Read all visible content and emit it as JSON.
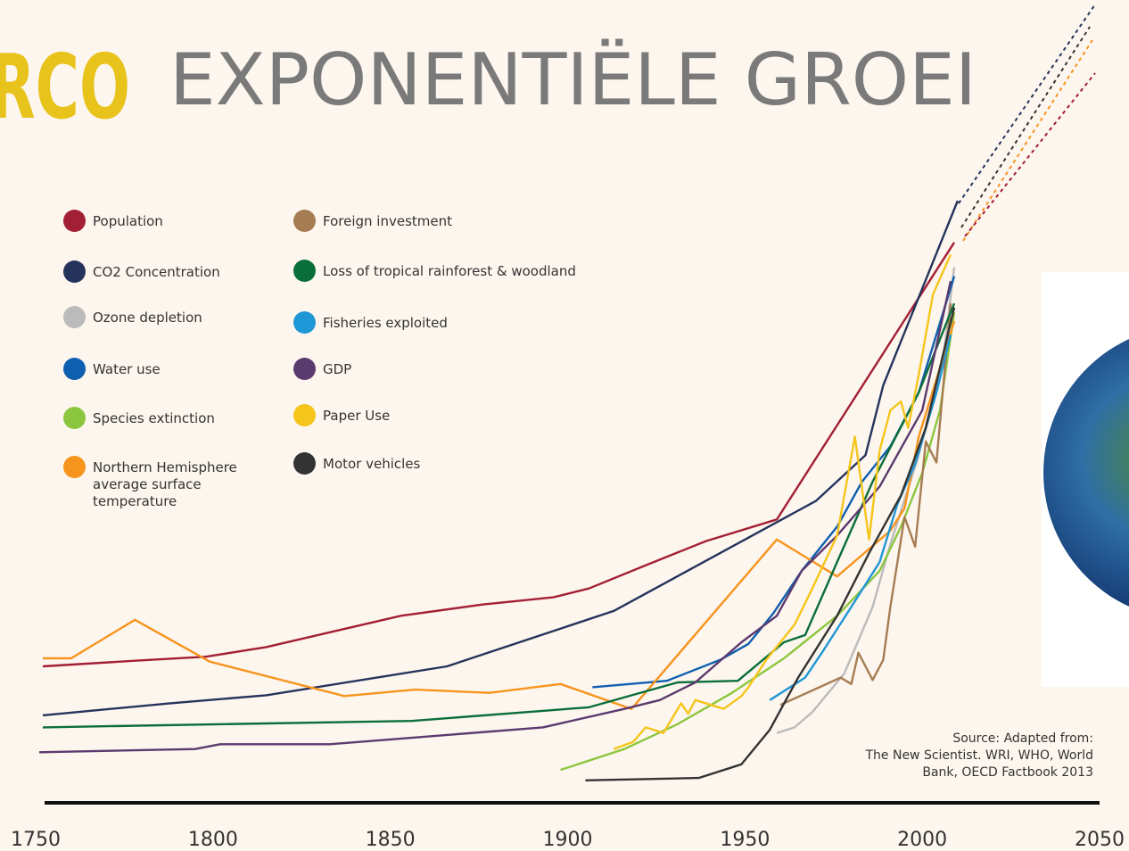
{
  "header": {
    "brand": "RCO",
    "title": "EXPONENTIËLE GROEI"
  },
  "chart_data": {
    "type": "line",
    "xlim": [
      1750,
      2050
    ],
    "xticks": [
      1750,
      1800,
      1850,
      1900,
      1950,
      2000,
      2050
    ],
    "ylim": [
      0,
      100
    ],
    "series": [
      {
        "name": "Population",
        "color": "#a31f34",
        "x": [
          1752,
          1778,
          1798,
          1815,
          1853,
          1876,
          1896,
          1906,
          1921,
          1939,
          1959,
          2009
        ],
        "values": [
          17,
          17.7,
          18.2,
          19.4,
          23.3,
          24.7,
          25.6,
          26.7,
          29.4,
          32.6,
          35.3,
          69.8
        ]
      },
      {
        "name": "CO2 Concentration",
        "color": "#25335c",
        "x": [
          1752,
          1788,
          1815,
          1866,
          1913,
          1970,
          1984,
          1989,
          2010
        ],
        "values": [
          10.9,
          12.4,
          13.4,
          17,
          23.9,
          37.6,
          43.3,
          52,
          75
        ]
      },
      {
        "name": "Ozone depletion",
        "color": "#bbbbbb",
        "x": [
          1959,
          1964,
          1969,
          1978,
          1986,
          1991,
          1999,
          2006,
          2009
        ],
        "values": [
          8.7,
          9.4,
          11.3,
          16.1,
          24.4,
          32.2,
          43.3,
          55.6,
          66.7
        ]
      },
      {
        "name": "Water use",
        "color": "#0f5fb0",
        "x": [
          1907,
          1928,
          1943,
          1951,
          1958,
          1966,
          1976,
          1983,
          1991,
          1999,
          2009
        ],
        "values": [
          14.4,
          15.2,
          17.8,
          19.8,
          23.6,
          28.9,
          34.4,
          40,
          44.4,
          51.1,
          65.6
        ]
      },
      {
        "name": "Species extinction",
        "color": "#8cc63f",
        "x": [
          1898,
          1916,
          1931,
          1946,
          1961,
          1976,
          1988,
          1994,
          2000,
          2005,
          2009
        ],
        "values": [
          4.1,
          6.7,
          9.8,
          13.6,
          18,
          23.3,
          28.9,
          34.4,
          41.1,
          48.9,
          61.1
        ]
      },
      {
        "name": "Northern Hemisphere average surface temperature",
        "color": "#f7941d",
        "x": [
          1752,
          1760,
          1778,
          1799,
          1837,
          1857,
          1878,
          1898,
          1918,
          1959,
          1976,
          1991,
          1995,
          1999,
          2006,
          2009
        ],
        "values": [
          18,
          18,
          22.8,
          17.6,
          13.3,
          14.1,
          13.7,
          14.8,
          11.7,
          32.8,
          28.2,
          33.9,
          36.7,
          45.6,
          55.6,
          60
        ]
      },
      {
        "name": "Foreign investment",
        "color": "#a67c52",
        "x": [
          1960,
          1977,
          1980,
          1982,
          1986,
          1989,
          1991,
          1995,
          1998,
          2001,
          2004,
          2008
        ],
        "values": [
          12.2,
          15.6,
          14.8,
          18.7,
          15.3,
          17.8,
          24.4,
          35.6,
          31.9,
          45,
          42.4,
          62.2
        ]
      },
      {
        "name": "Loss of tropical rainforest & woodland",
        "color": "#0a6e3a",
        "x": [
          1752,
          1803,
          1856,
          1906,
          1931,
          1948,
          1961,
          1967,
          1976,
          1986,
          1999,
          2009
        ],
        "values": [
          9.4,
          9.8,
          10.2,
          11.9,
          15,
          15.2,
          20,
          20.9,
          30,
          40,
          51.1,
          62.2
        ]
      },
      {
        "name": "Fisheries exploited",
        "color": "#1f96d6",
        "x": [
          1957,
          1967,
          1972,
          1980,
          1988,
          1993,
          1998,
          2004,
          2008
        ],
        "values": [
          12.8,
          15.6,
          18.9,
          24.4,
          30,
          37.2,
          42.2,
          51.1,
          58.3
        ]
      },
      {
        "name": "GDP",
        "color": "#5b3a6e",
        "x": [
          1751,
          1795,
          1802,
          1833,
          1893,
          1916,
          1926,
          1936,
          1949,
          1959,
          1966,
          1976,
          1988,
          2000,
          2008
        ],
        "values": [
          6.3,
          6.7,
          7.3,
          7.3,
          9.4,
          11.7,
          12.8,
          15,
          20,
          23.3,
          28.9,
          33.3,
          39.4,
          48.9,
          65
        ]
      },
      {
        "name": "Paper Use",
        "color": "#f5c51b",
        "x": [
          1913,
          1918.5,
          1922,
          1927,
          1932,
          1934,
          1936,
          1944,
          1949,
          1951,
          1956,
          1964,
          1969,
          1976,
          1981,
          1985,
          1988,
          1991,
          1994,
          1996,
          1999,
          2003,
          2008
        ],
        "values": [
          6.7,
          7.6,
          9.4,
          8.7,
          12.4,
          11.1,
          12.8,
          11.7,
          13.3,
          14.4,
          17.8,
          22.2,
          26.7,
          33.3,
          45.6,
          32.8,
          43.9,
          48.9,
          50,
          46.7,
          53.3,
          63.3,
          68.3
        ]
      },
      {
        "name": "Motor vehicles",
        "color": "#333333",
        "x": [
          1905,
          1937,
          1949,
          1957,
          1965,
          1976,
          1985,
          1994,
          2001,
          2009
        ],
        "values": [
          2.8,
          3.1,
          4.8,
          9.1,
          15.6,
          23.3,
          31.1,
          38.3,
          46.7,
          61.7
        ]
      }
    ],
    "source": [
      "Source: Adapted from:",
      "The New Scientist. WRI, WHO, World",
      "Bank, OECD Factbook 2013"
    ]
  }
}
